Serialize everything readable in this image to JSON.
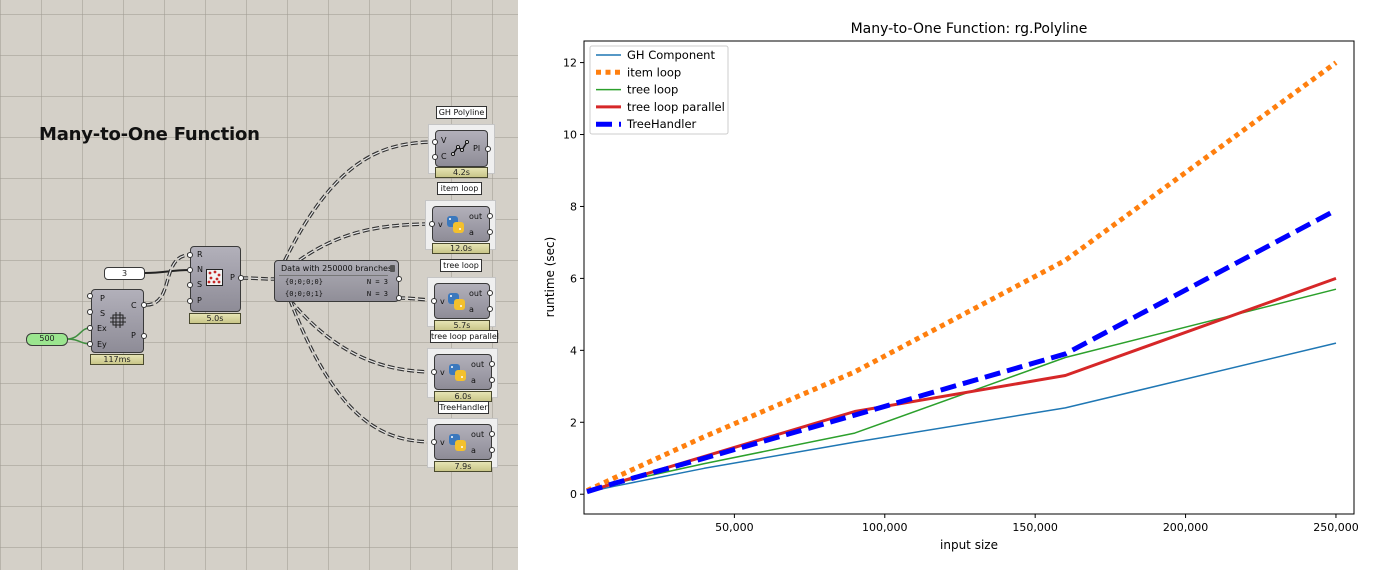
{
  "canvas": {
    "title": "Many-to-One Function",
    "slider_value": "500",
    "number_panel_value": "3",
    "rectangle": {
      "inputs": [
        "P",
        "S",
        "Ex",
        "Ey"
      ],
      "outputs": [
        "C",
        "P"
      ],
      "time": "117ms"
    },
    "populate": {
      "inputs": [
        "R",
        "N",
        "S",
        "P"
      ],
      "outputs": [
        "P"
      ],
      "time": "5.0s"
    },
    "param_viewer": {
      "title": "Data with 250000 branches",
      "rows": [
        {
          "path": "{0;0;0;0}",
          "count": "N = 3"
        },
        {
          "path": "{0;0;0;1}",
          "count": "N = 3"
        }
      ]
    },
    "polyline": {
      "name": "GH Polyline",
      "inputs": [
        "V",
        "C"
      ],
      "outputs": [
        "Pl"
      ],
      "time": "4.2s"
    },
    "item_loop": {
      "name": "item loop",
      "inputs": [
        "v"
      ],
      "outputs": [
        "out",
        "a"
      ],
      "time": "12.0s"
    },
    "tree_loop": {
      "name": "tree loop",
      "inputs": [
        "v"
      ],
      "outputs": [
        "out",
        "a"
      ],
      "time": "5.7s"
    },
    "tree_loop_parallel": {
      "name": "tree loop parallel",
      "inputs": [
        "v"
      ],
      "outputs": [
        "out",
        "a"
      ],
      "time": "6.0s"
    },
    "tree_handler": {
      "name": "TreeHandler",
      "inputs": [
        "v"
      ],
      "outputs": [
        "out",
        "a"
      ],
      "time": "7.9s"
    },
    "icons": {
      "polyline": "polyline-icon",
      "populate": "populate-icon",
      "rectangle": "rectangle-grid-icon",
      "python": "python-icon"
    }
  },
  "chart_data": {
    "type": "line",
    "title": "Many-to-One Function: rg.Polyline",
    "xlabel": "input size",
    "ylabel": "runtime (sec)",
    "x": [
      1000,
      10000,
      40000,
      90000,
      160000,
      250000
    ],
    "xlim": [
      0,
      256000
    ],
    "ylim": [
      -0.55,
      12.6
    ],
    "xticks": [
      50000,
      100000,
      150000,
      200000,
      250000
    ],
    "xtick_labels": [
      "50,000",
      "100,000",
      "150,000",
      "200,000",
      "250,000"
    ],
    "yticks": [
      0,
      2,
      4,
      6,
      8,
      10,
      12
    ],
    "ytick_labels": [
      "0",
      "2",
      "4",
      "6",
      "8",
      "10",
      "12"
    ],
    "grid": false,
    "legend_position": "top-left",
    "series": [
      {
        "name": "GH Component",
        "values": [
          0.06,
          0.22,
          0.72,
          1.45,
          2.4,
          4.2
        ],
        "color": "#1f77b4",
        "style": "solid",
        "width": 1.5
      },
      {
        "name": "item loop",
        "values": [
          0.1,
          0.45,
          1.6,
          3.4,
          6.5,
          12.0
        ],
        "color": "#ff7f0e",
        "style": "dotted",
        "width": 5
      },
      {
        "name": "tree loop",
        "values": [
          0.07,
          0.3,
          0.85,
          1.7,
          3.8,
          5.7
        ],
        "color": "#2ca02c",
        "style": "solid",
        "width": 1.5
      },
      {
        "name": "tree loop parallel",
        "values": [
          0.07,
          0.3,
          1.05,
          2.3,
          3.3,
          6.0
        ],
        "color": "#d62728",
        "style": "solid",
        "width": 3
      },
      {
        "name": "TreeHandler",
        "values": [
          0.07,
          0.3,
          1.0,
          2.2,
          3.9,
          7.9
        ],
        "color": "#0000ff",
        "style": "dashed",
        "width": 5
      }
    ]
  }
}
